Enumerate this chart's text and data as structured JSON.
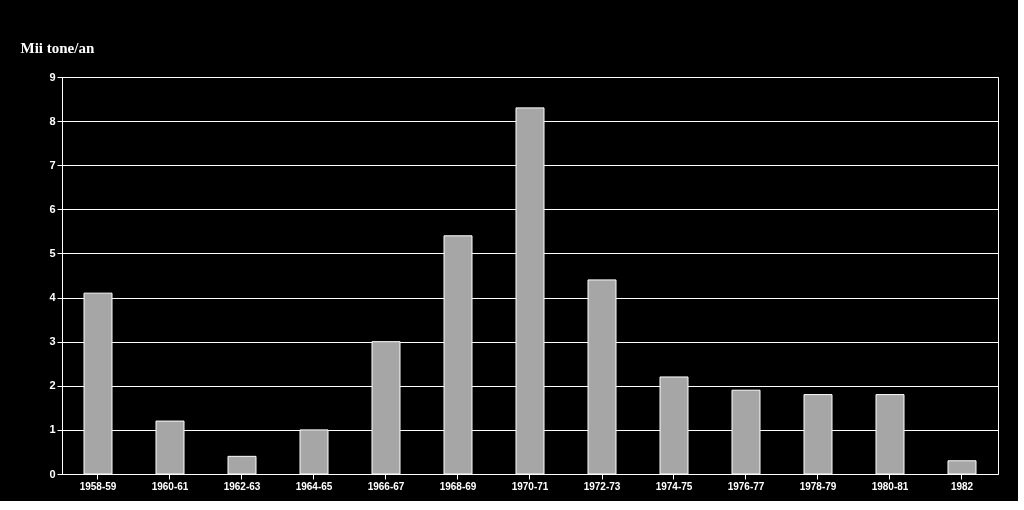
{
  "chart_data": {
    "type": "bar",
    "ylabel": "Mii tone/an",
    "categories": [
      "1958-59",
      "1960-61",
      "1962-63",
      "1964-65",
      "1966-67",
      "1968-69",
      "1970-71",
      "1972-73",
      "1974-75",
      "1976-77",
      "1978-79",
      "1980-81",
      "1982"
    ],
    "values": [
      4.1,
      1.2,
      0.4,
      1.0,
      3.0,
      5.4,
      8.3,
      4.4,
      2.2,
      1.9,
      1.8,
      1.8,
      0.3
    ],
    "color": "#a6a6a6",
    "ylim": [
      0,
      9
    ],
    "yticks": [
      0,
      1,
      2,
      3,
      4,
      5,
      6,
      7,
      8,
      9
    ],
    "grid": "y"
  }
}
